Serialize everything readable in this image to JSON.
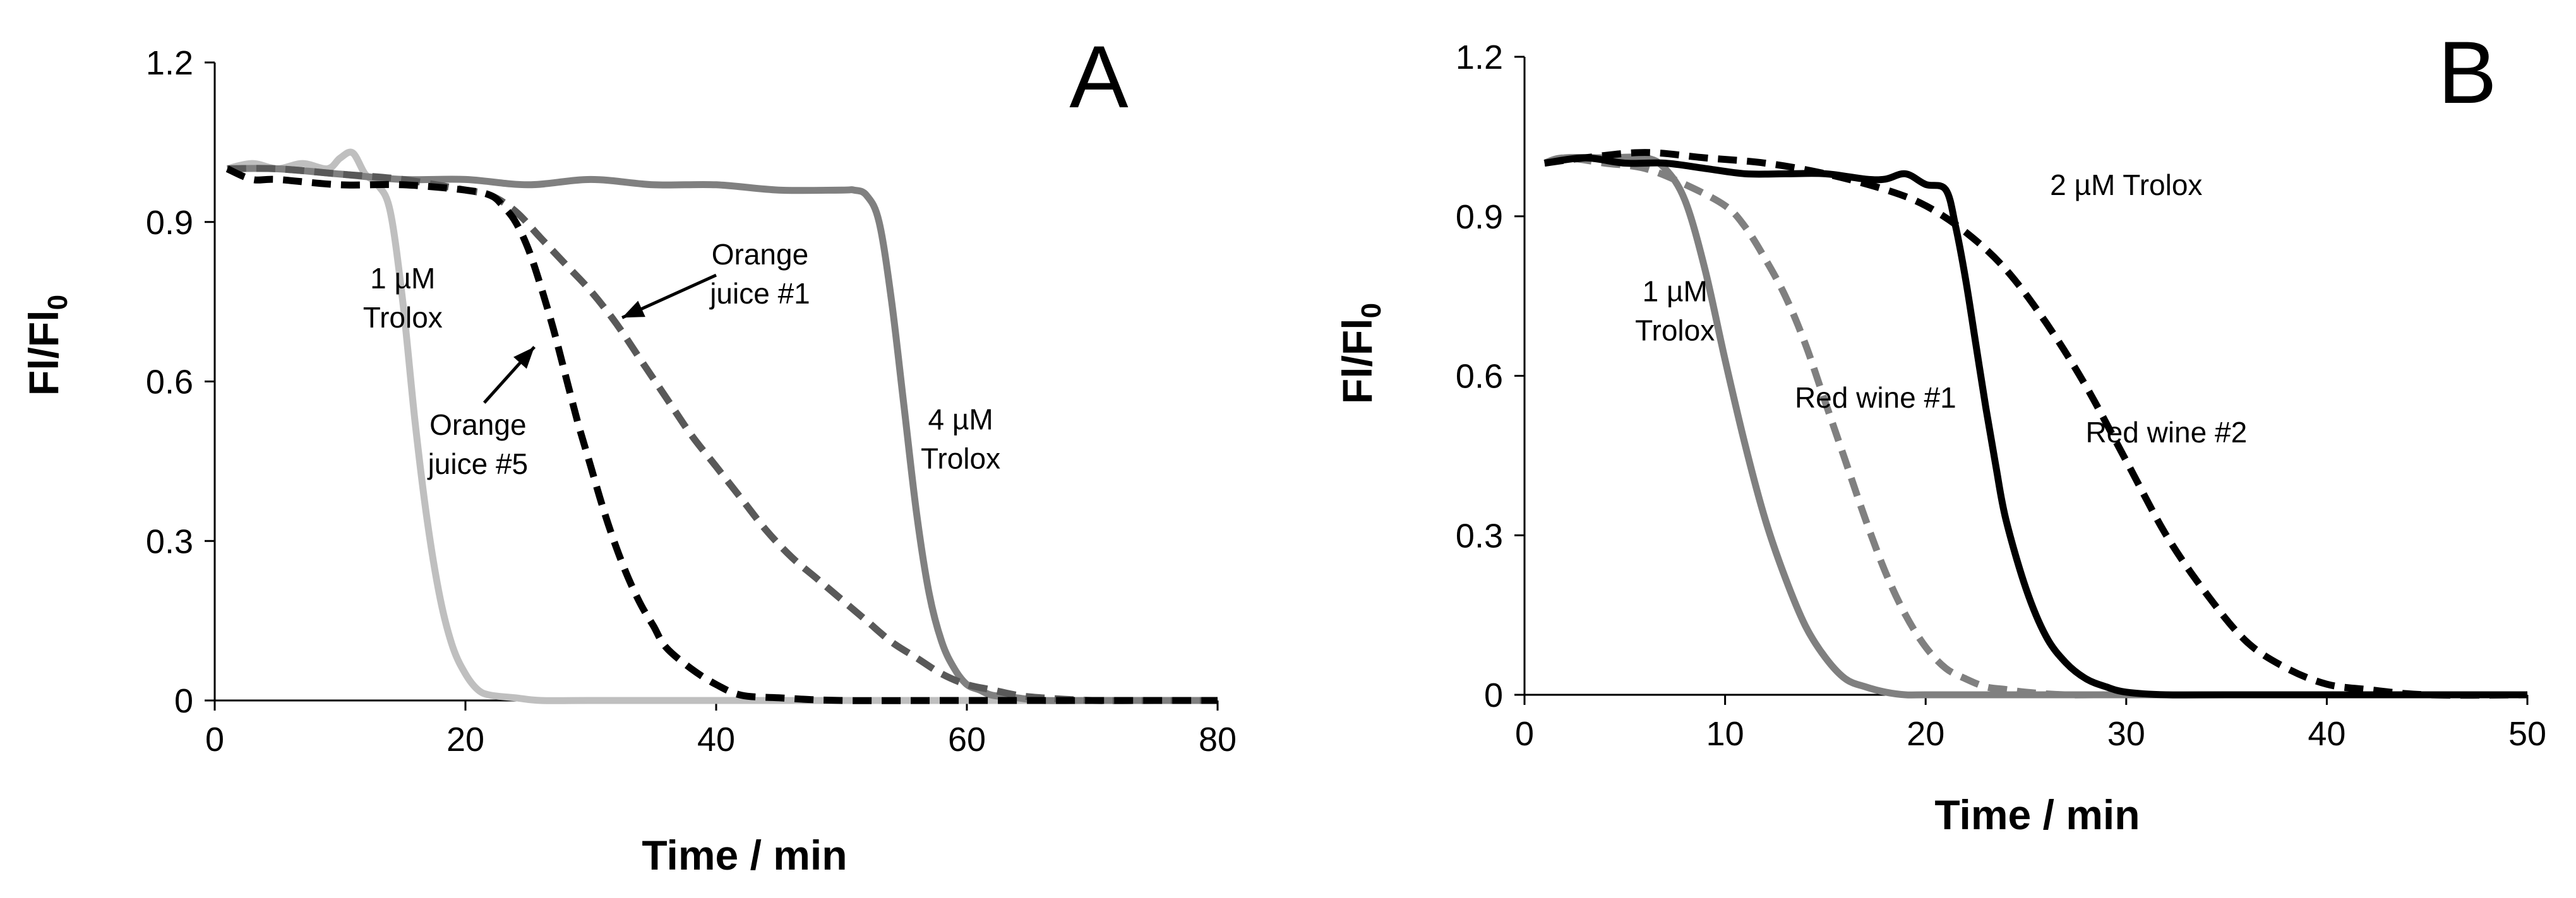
{
  "chart_data": [
    {
      "type": "line",
      "panel_label": "A",
      "xlabel": "Time  / min",
      "ylabel_main": "Fl/Fl",
      "ylabel_sub": "0",
      "xlim": [
        0,
        80
      ],
      "ylim": [
        0,
        1.2
      ],
      "xticks": [
        0,
        20,
        40,
        60,
        80
      ],
      "xtick_labels": [
        "0",
        "20",
        "40",
        "60",
        "80"
      ],
      "yticks": [
        0,
        0.3,
        0.6,
        0.9,
        1.2
      ],
      "ytick_labels": [
        "0",
        "0.3",
        "0.6",
        "0.9",
        "1.2"
      ],
      "series": [
        {
          "name": "1 µM Trolox",
          "color": "#bfbfbf",
          "dash": "solid",
          "x": [
            1,
            3,
            5,
            7,
            9,
            10,
            11,
            12,
            13,
            14,
            15,
            16,
            17,
            18,
            19,
            20,
            21,
            22,
            24,
            26,
            30,
            40,
            50,
            60,
            70,
            80
          ],
          "y": [
            1.0,
            1.01,
            1.0,
            1.01,
            1.0,
            1.02,
            1.03,
            0.99,
            0.97,
            0.92,
            0.75,
            0.52,
            0.33,
            0.19,
            0.1,
            0.05,
            0.02,
            0.01,
            0.005,
            0.0,
            0.0,
            0.0,
            0.0,
            0.0,
            0.0,
            0.0
          ]
        },
        {
          "name": "4 µM Trolox",
          "color": "#808080",
          "dash": "solid",
          "x": [
            1,
            5,
            10,
            15,
            20,
            25,
            30,
            35,
            40,
            45,
            50,
            51,
            52,
            53,
            54,
            55,
            56,
            57,
            58,
            59,
            60,
            61,
            62,
            64,
            66,
            70,
            80
          ],
          "y": [
            1.0,
            1.0,
            0.99,
            0.98,
            0.98,
            0.97,
            0.98,
            0.97,
            0.97,
            0.96,
            0.96,
            0.96,
            0.95,
            0.9,
            0.75,
            0.55,
            0.35,
            0.2,
            0.11,
            0.06,
            0.03,
            0.02,
            0.01,
            0.005,
            0.0,
            0.0,
            0.0
          ]
        },
        {
          "name": "Orange juice #1",
          "color": "#595959",
          "dash": "dashed",
          "x": [
            1,
            5,
            10,
            15,
            20,
            22,
            24,
            26,
            28,
            30,
            32,
            34,
            36,
            38,
            40,
            42,
            44,
            46,
            48,
            50,
            52,
            54,
            56,
            58,
            60,
            62,
            64,
            66,
            70,
            75,
            80
          ],
          "y": [
            1.0,
            1.0,
            0.99,
            0.98,
            0.96,
            0.95,
            0.92,
            0.87,
            0.82,
            0.77,
            0.71,
            0.64,
            0.57,
            0.5,
            0.44,
            0.38,
            0.32,
            0.27,
            0.23,
            0.19,
            0.15,
            0.11,
            0.08,
            0.05,
            0.03,
            0.02,
            0.01,
            0.005,
            0.0,
            0.0,
            0.0
          ]
        },
        {
          "name": "Orange juice #5",
          "color": "#000000",
          "dash": "dashed",
          "x": [
            1,
            3,
            5,
            10,
            15,
            20,
            22,
            23,
            24,
            25,
            26,
            27,
            28,
            29,
            30,
            31,
            32,
            33,
            34,
            35,
            36,
            38,
            40,
            42,
            45,
            50,
            60,
            80
          ],
          "y": [
            1.0,
            0.98,
            0.98,
            0.97,
            0.97,
            0.96,
            0.95,
            0.93,
            0.9,
            0.85,
            0.78,
            0.7,
            0.61,
            0.52,
            0.44,
            0.36,
            0.29,
            0.23,
            0.18,
            0.14,
            0.1,
            0.06,
            0.03,
            0.01,
            0.005,
            0.0,
            0.0,
            0.0
          ]
        }
      ],
      "annotations": [
        {
          "lines": [
            "1 µM",
            "Trolox"
          ],
          "x": 15,
          "y": 0.775
        },
        {
          "lines": [
            "Orange",
            "juice #5"
          ],
          "x": 21,
          "y": 0.5
        },
        {
          "lines": [
            "Orange",
            "juice #1"
          ],
          "x": 43.5,
          "y": 0.82
        },
        {
          "lines": [
            "4 µM",
            "Trolox"
          ],
          "x": 59.5,
          "y": 0.51
        }
      ],
      "arrows": [
        {
          "from": [
            40,
            0.8
          ],
          "to": [
            32.5,
            0.72
          ]
        },
        {
          "from": [
            21.5,
            0.56
          ],
          "to": [
            25.5,
            0.665
          ]
        }
      ]
    },
    {
      "type": "line",
      "panel_label": "B",
      "xlabel": "Time  / min",
      "ylabel_main": "Fl/Fl",
      "ylabel_sub": "0",
      "xlim": [
        0,
        50
      ],
      "ylim": [
        0,
        1.2
      ],
      "xticks": [
        0,
        10,
        20,
        30,
        40,
        50
      ],
      "xtick_labels": [
        "0",
        "10",
        "20",
        "30",
        "40",
        "50"
      ],
      "yticks": [
        0,
        0.3,
        0.6,
        0.9,
        1.2
      ],
      "ytick_labels": [
        "0",
        "0.3",
        "0.6",
        "0.9",
        "1.2"
      ],
      "series": [
        {
          "name": "1 µM Trolox",
          "color": "#808080",
          "dash": "solid",
          "x": [
            1,
            2,
            4,
            6,
            7,
            8,
            9,
            10,
            11,
            12,
            13,
            14,
            15,
            16,
            17,
            18,
            19,
            20,
            25,
            30,
            50
          ],
          "y": [
            1.0,
            1.01,
            1.01,
            1.01,
            0.99,
            0.93,
            0.8,
            0.63,
            0.47,
            0.33,
            0.22,
            0.13,
            0.07,
            0.03,
            0.015,
            0.005,
            0.0,
            0.0,
            0.0,
            0.0,
            0.0
          ]
        },
        {
          "name": "Red wine #1",
          "color": "#808080",
          "dash": "dashed",
          "x": [
            1,
            2,
            4,
            6,
            8,
            10,
            11,
            12,
            13,
            14,
            15,
            16,
            17,
            18,
            19,
            20,
            21,
            22,
            23,
            24,
            25,
            27,
            30,
            50
          ],
          "y": [
            1.0,
            1.01,
            1.0,
            0.99,
            0.96,
            0.92,
            0.88,
            0.82,
            0.75,
            0.66,
            0.55,
            0.44,
            0.33,
            0.23,
            0.15,
            0.09,
            0.05,
            0.03,
            0.015,
            0.01,
            0.005,
            0.0,
            0.0,
            0.0
          ]
        },
        {
          "name": "2 µM Trolox",
          "color": "#000000",
          "dash": "solid",
          "x": [
            1,
            3,
            5,
            7,
            9,
            11,
            13,
            15,
            17,
            18,
            19,
            20,
            21,
            21.5,
            22,
            22.5,
            23,
            23.5,
            24,
            25,
            26,
            27,
            28,
            29,
            30,
            32,
            35,
            50
          ],
          "y": [
            1.0,
            1.01,
            1.0,
            1.0,
            0.99,
            0.98,
            0.98,
            0.98,
            0.97,
            0.97,
            0.98,
            0.96,
            0.95,
            0.88,
            0.78,
            0.66,
            0.54,
            0.43,
            0.33,
            0.2,
            0.11,
            0.06,
            0.03,
            0.015,
            0.005,
            0.0,
            0.0,
            0.0
          ]
        },
        {
          "name": "Red wine #2",
          "color": "#000000",
          "dash": "dashed",
          "x": [
            1,
            3,
            6,
            9,
            12,
            15,
            18,
            20,
            22,
            24,
            26,
            28,
            30,
            32,
            34,
            36,
            38,
            40,
            42,
            45,
            50
          ],
          "y": [
            1.0,
            1.01,
            1.02,
            1.01,
            1.0,
            0.98,
            0.95,
            0.92,
            0.87,
            0.8,
            0.7,
            0.58,
            0.44,
            0.3,
            0.19,
            0.1,
            0.05,
            0.02,
            0.01,
            0.0,
            0.0
          ]
        }
      ],
      "annotations": [
        {
          "lines": [
            "1 µM",
            "Trolox"
          ],
          "x": 7.5,
          "y": 0.74
        },
        {
          "lines": [
            "Red  wine #1"
          ],
          "x": 17.5,
          "y": 0.54
        },
        {
          "lines": [
            "2 µM Trolox"
          ],
          "x": 30,
          "y": 0.94
        },
        {
          "lines": [
            "Red  wine #2"
          ],
          "x": 32,
          "y": 0.475
        }
      ],
      "arrows": []
    }
  ]
}
